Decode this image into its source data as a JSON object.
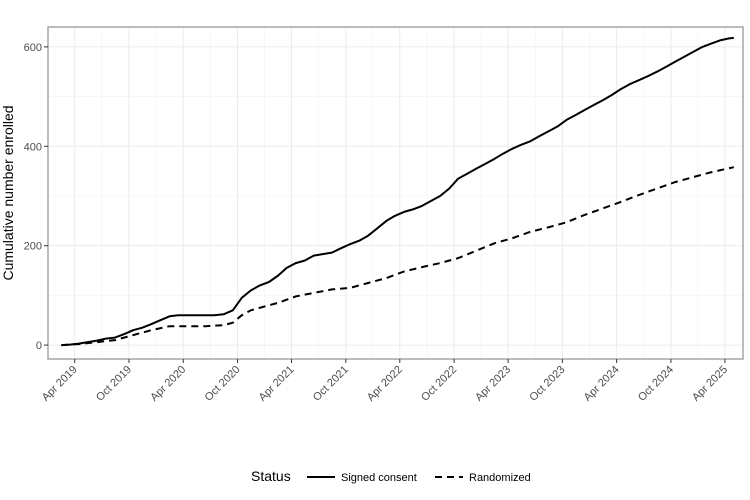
{
  "chart_data": {
    "type": "line",
    "xlabel": "",
    "ylabel": "Cumulative number enrolled",
    "ylim": [
      0,
      640
    ],
    "y_ticks": [
      0,
      200,
      400,
      600
    ],
    "x_ticks": [
      "Apr 2019",
      "Oct 2019",
      "Apr 2020",
      "Oct 2020",
      "Apr 2021",
      "Oct 2021",
      "Apr 2022",
      "Oct 2022",
      "Apr 2023",
      "Oct 2023",
      "Apr 2024",
      "Oct 2024",
      "Apr 2025"
    ],
    "x_range": [
      "2019-01-01",
      "2025-06-01"
    ],
    "grid": true,
    "legend": {
      "title": "Status",
      "position": "bottom"
    },
    "series": [
      {
        "name": "Signed consent",
        "line_style": "solid",
        "color": "#000000",
        "points": [
          [
            "2019-02-15",
            0
          ],
          [
            "2019-03-15",
            1
          ],
          [
            "2019-04-15",
            3
          ],
          [
            "2019-05-15",
            6
          ],
          [
            "2019-06-15",
            9
          ],
          [
            "2019-07-15",
            13
          ],
          [
            "2019-08-15",
            15
          ],
          [
            "2019-09-15",
            22
          ],
          [
            "2019-10-15",
            30
          ],
          [
            "2019-11-15",
            35
          ],
          [
            "2019-12-15",
            42
          ],
          [
            "2020-01-15",
            50
          ],
          [
            "2020-02-15",
            58
          ],
          [
            "2020-03-15",
            60
          ],
          [
            "2020-04-15",
            60
          ],
          [
            "2020-05-15",
            60
          ],
          [
            "2020-06-15",
            60
          ],
          [
            "2020-07-15",
            60
          ],
          [
            "2020-08-15",
            62
          ],
          [
            "2020-09-15",
            70
          ],
          [
            "2020-10-15",
            95
          ],
          [
            "2020-11-15",
            110
          ],
          [
            "2020-12-15",
            120
          ],
          [
            "2021-01-15",
            127
          ],
          [
            "2021-02-15",
            140
          ],
          [
            "2021-03-15",
            155
          ],
          [
            "2021-04-15",
            165
          ],
          [
            "2021-05-15",
            170
          ],
          [
            "2021-06-15",
            180
          ],
          [
            "2021-07-15",
            183
          ],
          [
            "2021-08-15",
            186
          ],
          [
            "2021-09-15",
            195
          ],
          [
            "2021-10-15",
            203
          ],
          [
            "2021-11-15",
            210
          ],
          [
            "2021-12-15",
            220
          ],
          [
            "2022-01-15",
            235
          ],
          [
            "2022-02-15",
            250
          ],
          [
            "2022-03-15",
            260
          ],
          [
            "2022-04-15",
            268
          ],
          [
            "2022-05-15",
            273
          ],
          [
            "2022-06-15",
            280
          ],
          [
            "2022-07-15",
            290
          ],
          [
            "2022-08-15",
            300
          ],
          [
            "2022-09-15",
            315
          ],
          [
            "2022-10-15",
            335
          ],
          [
            "2022-11-15",
            345
          ],
          [
            "2022-12-15",
            355
          ],
          [
            "2023-01-15",
            365
          ],
          [
            "2023-02-15",
            375
          ],
          [
            "2023-03-15",
            385
          ],
          [
            "2023-04-15",
            395
          ],
          [
            "2023-05-15",
            403
          ],
          [
            "2023-06-15",
            410
          ],
          [
            "2023-07-15",
            420
          ],
          [
            "2023-08-15",
            430
          ],
          [
            "2023-09-15",
            440
          ],
          [
            "2023-10-15",
            453
          ],
          [
            "2023-11-15",
            463
          ],
          [
            "2023-12-15",
            473
          ],
          [
            "2024-01-15",
            483
          ],
          [
            "2024-02-15",
            493
          ],
          [
            "2024-03-15",
            503
          ],
          [
            "2024-04-15",
            515
          ],
          [
            "2024-05-15",
            525
          ],
          [
            "2024-06-15",
            533
          ],
          [
            "2024-07-15",
            541
          ],
          [
            "2024-08-15",
            550
          ],
          [
            "2024-09-15",
            560
          ],
          [
            "2024-10-15",
            570
          ],
          [
            "2024-11-15",
            580
          ],
          [
            "2024-12-15",
            590
          ],
          [
            "2025-01-15",
            600
          ],
          [
            "2025-02-15",
            607
          ],
          [
            "2025-03-15",
            613
          ],
          [
            "2025-04-15",
            617
          ],
          [
            "2025-05-01",
            618
          ]
        ]
      },
      {
        "name": "Randomized",
        "line_style": "dashed",
        "color": "#000000",
        "points": [
          [
            "2019-02-15",
            0
          ],
          [
            "2019-04-15",
            2
          ],
          [
            "2019-06-15",
            6
          ],
          [
            "2019-08-15",
            10
          ],
          [
            "2019-10-15",
            20
          ],
          [
            "2019-12-15",
            30
          ],
          [
            "2020-02-15",
            38
          ],
          [
            "2020-04-15",
            38
          ],
          [
            "2020-06-15",
            38
          ],
          [
            "2020-08-15",
            40
          ],
          [
            "2020-09-15",
            45
          ],
          [
            "2020-10-15",
            60
          ],
          [
            "2020-11-15",
            70
          ],
          [
            "2020-12-15",
            75
          ],
          [
            "2021-02-15",
            85
          ],
          [
            "2021-04-15",
            98
          ],
          [
            "2021-06-15",
            105
          ],
          [
            "2021-08-15",
            112
          ],
          [
            "2021-10-15",
            115
          ],
          [
            "2021-12-15",
            125
          ],
          [
            "2022-02-15",
            135
          ],
          [
            "2022-04-15",
            148
          ],
          [
            "2022-06-15",
            157
          ],
          [
            "2022-08-15",
            165
          ],
          [
            "2022-10-15",
            175
          ],
          [
            "2022-12-15",
            190
          ],
          [
            "2023-02-15",
            205
          ],
          [
            "2023-04-15",
            215
          ],
          [
            "2023-06-15",
            228
          ],
          [
            "2023-08-15",
            237
          ],
          [
            "2023-10-15",
            247
          ],
          [
            "2023-12-15",
            262
          ],
          [
            "2024-02-15",
            275
          ],
          [
            "2024-04-15",
            288
          ],
          [
            "2024-06-15",
            302
          ],
          [
            "2024-08-15",
            315
          ],
          [
            "2024-10-15",
            328
          ],
          [
            "2024-12-15",
            338
          ],
          [
            "2025-02-15",
            348
          ],
          [
            "2025-05-01",
            358
          ]
        ]
      }
    ]
  }
}
